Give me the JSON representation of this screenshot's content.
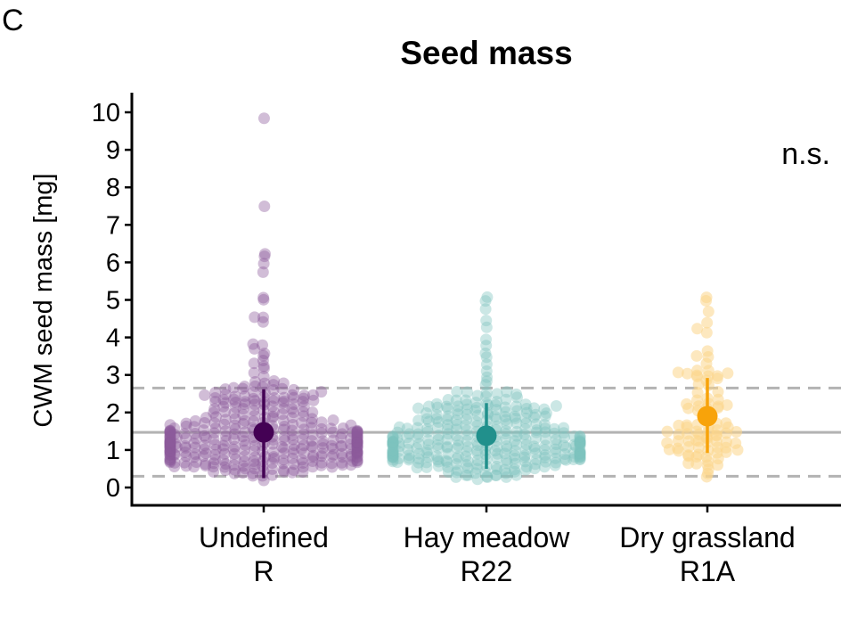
{
  "panel_label": "C",
  "chart_data": {
    "type": "scatter",
    "title": "Seed mass",
    "xlabel": "",
    "ylabel": "CWM seed mass [mg]",
    "ylim": [
      -0.4,
      10.5
    ],
    "yticks": [
      "0",
      "1",
      "2",
      "3",
      "4",
      "5",
      "6",
      "7",
      "8",
      "9",
      "10"
    ],
    "annotation": "n.s.",
    "reference_lines": {
      "overall_median": 1.47,
      "lower_dashed": 0.3,
      "upper_dashed": 2.65
    },
    "categories": [
      {
        "label_line1": "Undefined",
        "label_line2": "R",
        "color": "#440154",
        "point_color": "#8b5a9b",
        "n_points": 380,
        "mean": 1.47,
        "ci_low": 0.25,
        "ci_high": 2.62,
        "outliers": [
          9.8,
          7.48,
          6.18,
          6.15,
          5.95,
          5.75,
          5.1,
          4.98,
          4.55,
          4.5,
          4.43,
          3.8,
          3.75,
          3.68,
          3.6,
          3.55,
          3.42,
          3.3,
          3.25,
          3.15,
          3.05,
          2.95
        ]
      },
      {
        "label_line1": "Hay meadow",
        "label_line2": "R22",
        "color": "#21908c",
        "point_color": "#7cc2bf",
        "n_points": 330,
        "mean": 1.38,
        "ci_low": 0.5,
        "ci_high": 2.25,
        "outliers": [
          5.1,
          4.98,
          4.75,
          4.45,
          4.28,
          3.95,
          3.82,
          3.6,
          3.45,
          3.3,
          3.1,
          2.98,
          2.85,
          2.75
        ]
      },
      {
        "label_line1": "Dry grassland",
        "label_line2": "R1A",
        "color": "#f8a30a",
        "point_color": "#fcd58a",
        "n_points": 95,
        "mean": 1.9,
        "ci_low": 0.92,
        "ci_high": 2.92,
        "outliers": [
          5.05,
          4.95,
          4.7,
          4.35,
          4.2,
          4.1,
          3.6,
          3.55,
          3.45,
          3.3
        ]
      }
    ]
  }
}
